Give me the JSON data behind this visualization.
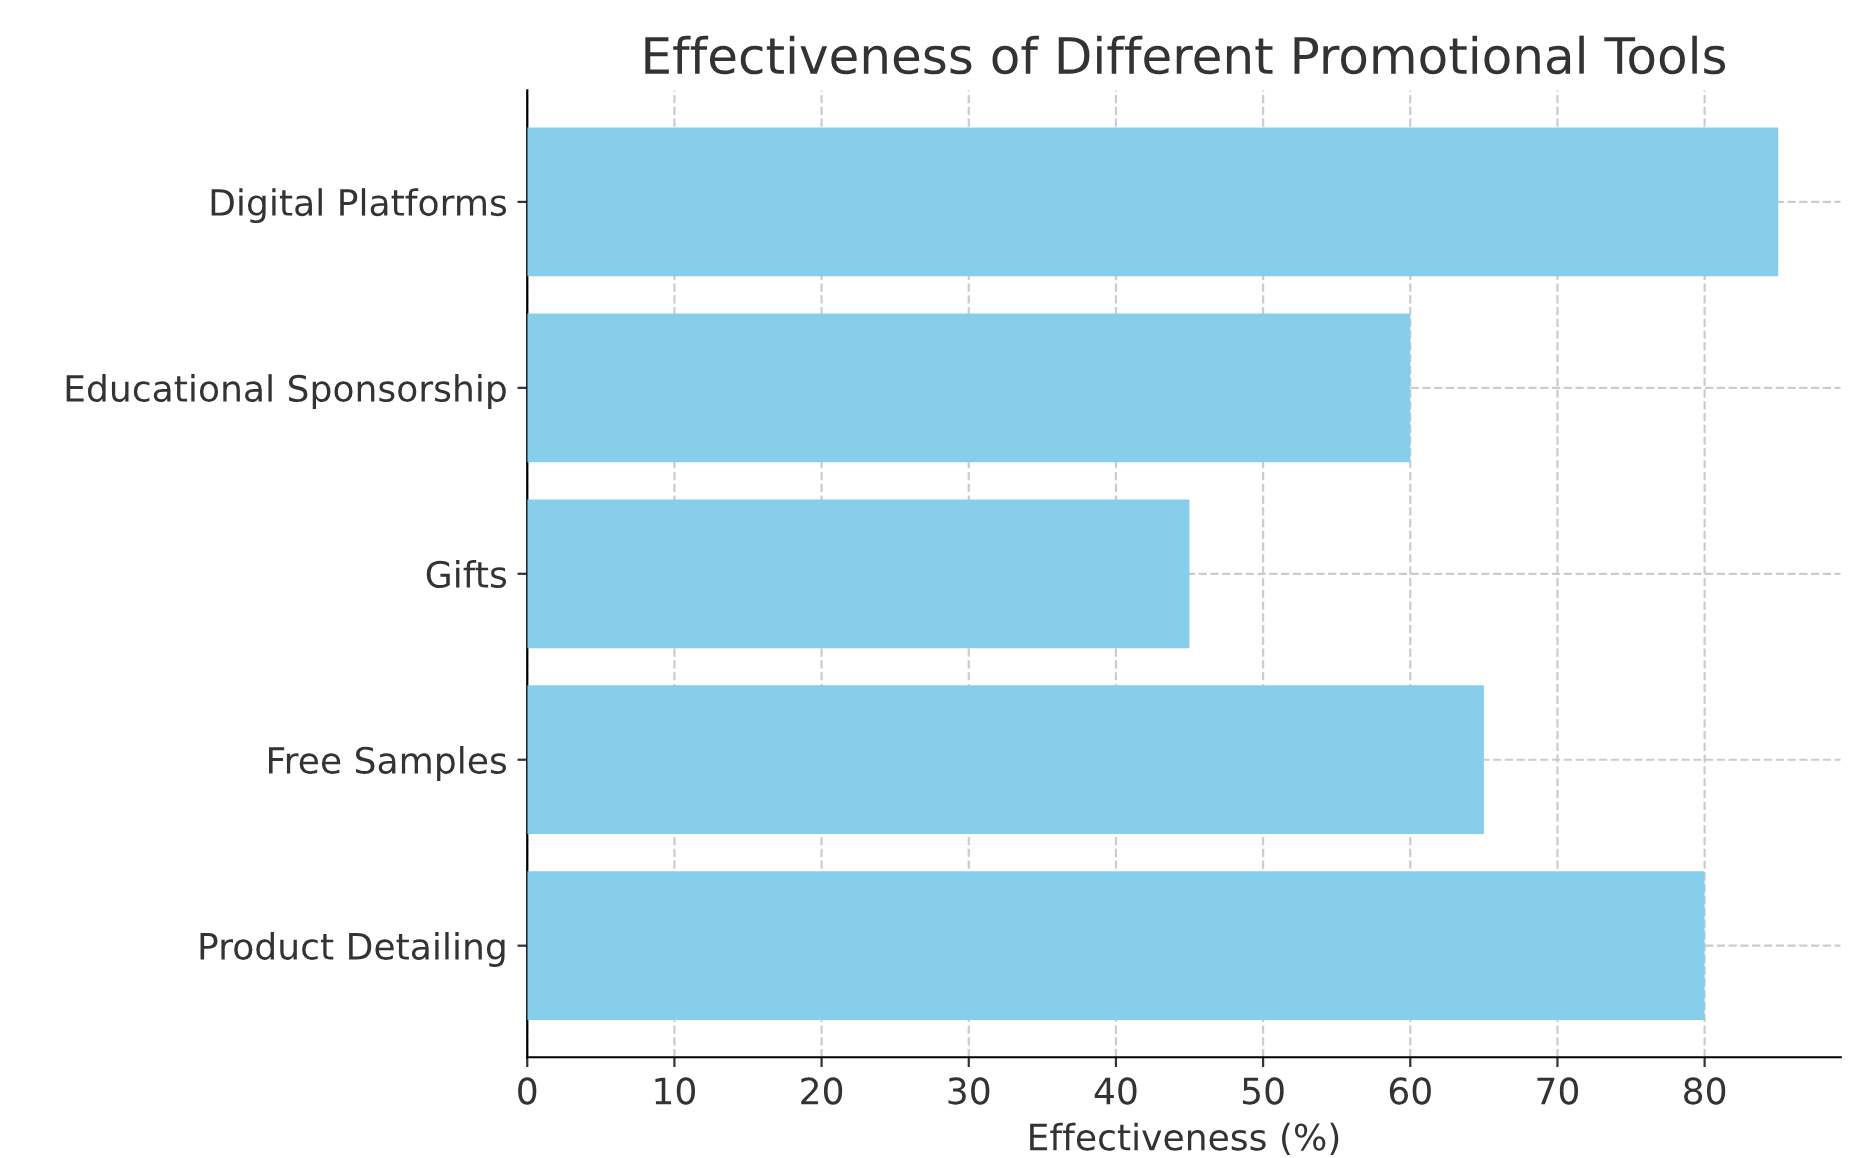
{
  "chart_data": {
    "type": "bar",
    "orientation": "horizontal",
    "title": "Effectiveness of Different Promotional Tools",
    "xlabel": "Effectiveness (%)",
    "categories": [
      "Digital Platforms",
      "Educational Sponsorship",
      "Gifts",
      "Free Samples",
      "Product Detailing"
    ],
    "values": [
      85,
      60,
      45,
      65,
      80
    ],
    "color": "#87ceeb",
    "xlim": [
      0,
      89.25
    ],
    "xticks": [
      0,
      10,
      20,
      30,
      40,
      50,
      60,
      70,
      80
    ],
    "grid": true
  }
}
